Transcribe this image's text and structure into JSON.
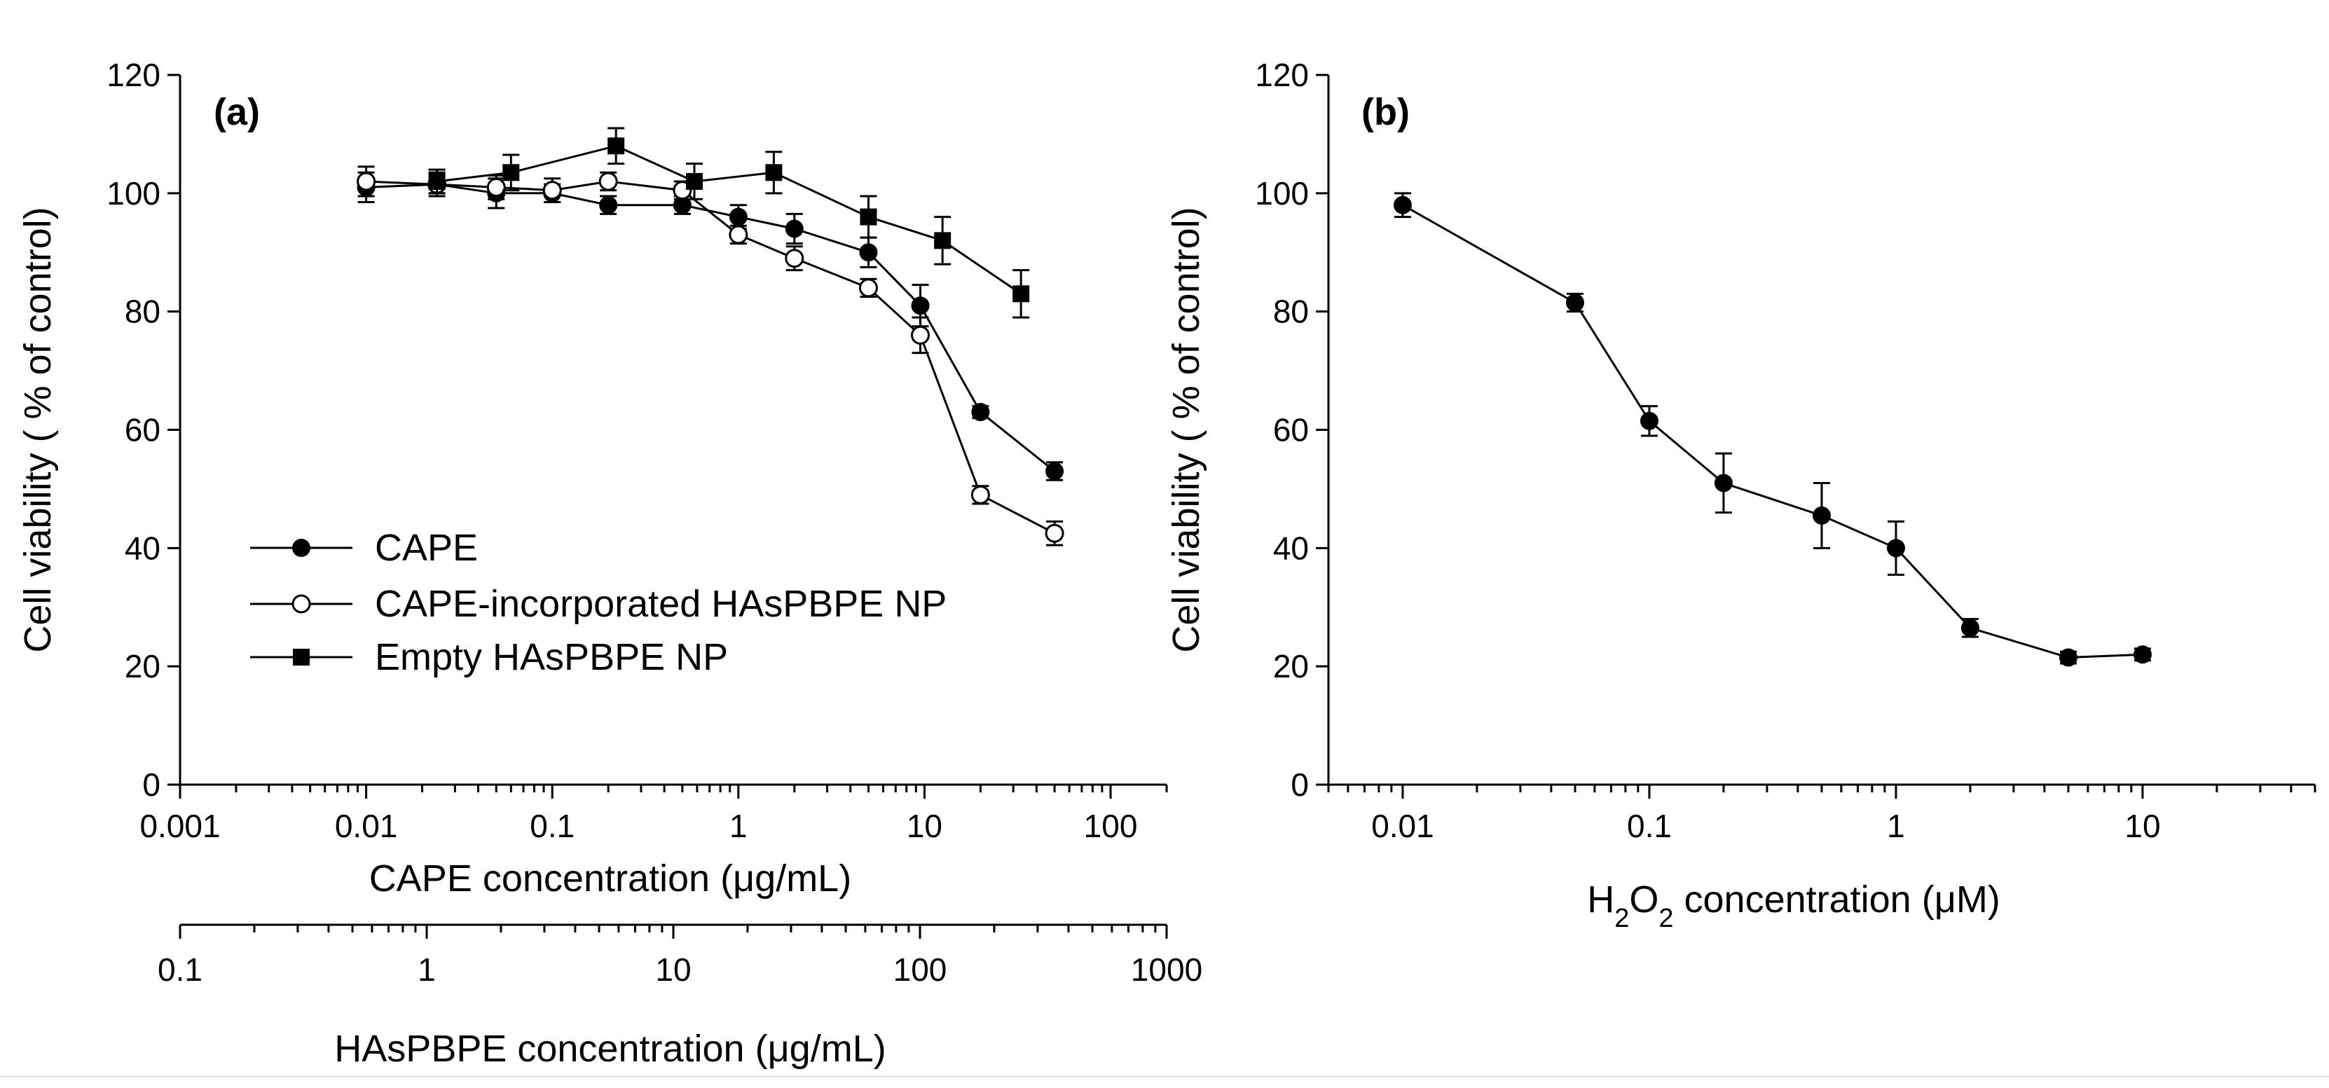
{
  "chart_data": [
    {
      "type": "line",
      "panel_label": "(a)",
      "xscale": "log",
      "xlim": [
        0.001,
        200
      ],
      "ylim": [
        0,
        120
      ],
      "yticks": [
        0,
        20,
        40,
        60,
        80,
        100,
        120
      ],
      "ytick_labels": [
        "0",
        "20",
        "40",
        "60",
        "80",
        "100",
        "120"
      ],
      "xticks": [
        0.001,
        0.01,
        0.1,
        1,
        10,
        100
      ],
      "xtick_labels": [
        "0.001",
        "0.01",
        "0.1",
        "1",
        "10",
        "100"
      ],
      "xlabel": "CAPE concentration (μg/mL)",
      "ylabel": "Cell viability ( % of control)",
      "secondary_x": {
        "xscale": "log",
        "xticks": [
          0.1,
          1,
          10,
          100,
          1000
        ],
        "xtick_labels": [
          "0.1",
          "1",
          "10",
          "100",
          "1000"
        ],
        "xlabel": "HAsPBPE concentration (μg/mL)"
      },
      "legend_position": "lower-left",
      "series": [
        {
          "name": "CAPE",
          "marker": "filled-circle",
          "x": [
            0.01,
            0.024,
            0.05,
            0.1,
            0.2,
            0.5,
            1,
            2,
            5,
            9.5,
            20,
            50
          ],
          "y": [
            101,
            101.5,
            100,
            100,
            98,
            98,
            96,
            94,
            90,
            81,
            63,
            53
          ],
          "err": [
            2.5,
            1.5,
            2.5,
            1.5,
            1.5,
            1.5,
            2,
            2.5,
            2.5,
            3.5,
            1,
            1.5
          ]
        },
        {
          "name": "CAPE-incorporated HAsPBPE NP",
          "marker": "open-circle",
          "x": [
            0.01,
            0.024,
            0.05,
            0.1,
            0.2,
            0.5,
            1,
            2,
            5,
            9.5,
            20,
            50
          ],
          "y": [
            102,
            101.5,
            101,
            100.5,
            102,
            100.5,
            93,
            89,
            84,
            76,
            49,
            42.5
          ],
          "err": [
            2.5,
            2,
            2,
            2,
            1.5,
            1.5,
            1.5,
            2,
            1.5,
            3,
            1.5,
            2
          ]
        },
        {
          "name": "Empty HAsPBPE NP",
          "marker": "filled-square",
          "x": [
            0.024,
            0.06,
            0.22,
            0.58,
            1.55,
            5,
            12.5,
            33
          ],
          "y": [
            102,
            103.5,
            108,
            102,
            103.5,
            96,
            92,
            83
          ],
          "err": [
            2,
            3,
            3,
            3,
            3.5,
            3.5,
            4,
            4
          ]
        }
      ]
    },
    {
      "type": "line",
      "panel_label": "(b)",
      "xscale": "log",
      "xlim": [
        0.005,
        50
      ],
      "ylim": [
        0,
        120
      ],
      "yticks": [
        0,
        20,
        40,
        60,
        80,
        100,
        120
      ],
      "ytick_labels": [
        "0",
        "20",
        "40",
        "60",
        "80",
        "100",
        "120"
      ],
      "xticks": [
        0.01,
        0.1,
        1,
        10
      ],
      "xtick_labels": [
        "0.01",
        "0.1",
        "1",
        "10"
      ],
      "xlabel_parts": [
        "H",
        "2",
        "O",
        "2",
        " concentration (μM)"
      ],
      "ylabel": "Cell viability ( % of control)",
      "series": [
        {
          "marker": "filled-circle",
          "x": [
            0.01,
            0.05,
            0.1,
            0.2,
            0.5,
            1,
            2,
            5,
            10
          ],
          "y": [
            98,
            81.5,
            61.5,
            51,
            45.5,
            40,
            26.5,
            21.5,
            22
          ],
          "err": [
            2,
            1.5,
            2.5,
            5,
            5.5,
            4.5,
            1.5,
            1,
            1
          ]
        }
      ]
    }
  ]
}
